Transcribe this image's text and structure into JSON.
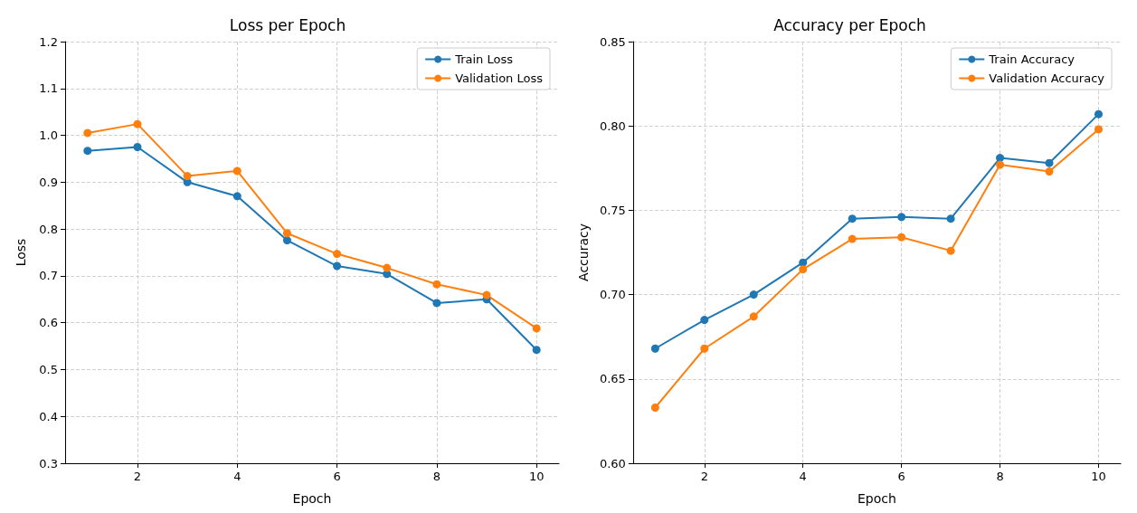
{
  "chart_data": [
    {
      "type": "line",
      "title": "Loss per Epoch",
      "xlabel": "Epoch",
      "ylabel": "Loss",
      "x": [
        1,
        2,
        3,
        4,
        5,
        6,
        7,
        8,
        9,
        10
      ],
      "series": [
        {
          "name": "Train Loss",
          "color": "#1f77b4",
          "values": [
            0.967,
            0.975,
            0.9,
            0.87,
            0.776,
            0.721,
            0.704,
            0.642,
            0.65,
            0.542
          ]
        },
        {
          "name": "Validation Loss",
          "color": "#ff7f0e",
          "values": [
            1.005,
            1.024,
            0.913,
            0.924,
            0.791,
            0.747,
            0.717,
            0.682,
            0.659,
            0.588
          ]
        }
      ],
      "xlim": [
        0.55,
        10.45
      ],
      "xticks": [
        2,
        4,
        6,
        8,
        10
      ],
      "ylim": [
        0.3,
        1.2
      ],
      "yticks": [
        0.3,
        0.4,
        0.5,
        0.6,
        0.7,
        0.8,
        0.9,
        {
          "value": 1,
          "label": "1.0"
        },
        1.1,
        1.2
      ],
      "grid": true,
      "legend": "top right",
      "marker": "circle",
      "line_style": "solid"
    },
    {
      "type": "line",
      "title": "Accuracy per Epoch",
      "xlabel": "Epoch",
      "ylabel": "Accuracy",
      "x": [
        1,
        2,
        3,
        4,
        5,
        6,
        7,
        8,
        9,
        10
      ],
      "series": [
        {
          "name": "Train Accuracy",
          "color": "#1f77b4",
          "values": [
            0.668,
            0.685,
            0.7,
            0.719,
            0.745,
            0.746,
            0.745,
            0.781,
            0.778,
            0.807
          ]
        },
        {
          "name": "Validation Accuracy",
          "color": "#ff7f0e",
          "values": [
            0.633,
            0.668,
            0.687,
            0.715,
            0.733,
            0.734,
            0.726,
            0.777,
            0.773,
            0.798
          ]
        }
      ],
      "xlim": [
        0.55,
        10.45
      ],
      "xticks": [
        2,
        4,
        6,
        8,
        10
      ],
      "ylim": [
        0.6,
        0.85
      ],
      "yticks": [
        {
          "value": 0.6,
          "label": "0.60"
        },
        {
          "value": 0.65,
          "label": "0.65"
        },
        {
          "value": 0.7,
          "label": "0.70"
        },
        {
          "value": 0.75,
          "label": "0.75"
        },
        {
          "value": 0.8,
          "label": "0.80"
        },
        {
          "value": 0.85,
          "label": "0.85"
        }
      ],
      "grid": true,
      "legend": "top right",
      "marker": "circle",
      "line_style": "solid"
    }
  ]
}
